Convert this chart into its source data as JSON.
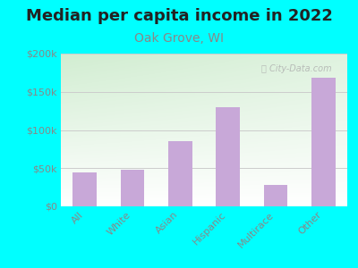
{
  "title": "Median per capita income in 2022",
  "subtitle": "Oak Grove, WI",
  "categories": [
    "All",
    "White",
    "Asian",
    "Hispanic",
    "Multirace",
    "Other"
  ],
  "values": [
    45000,
    48000,
    85000,
    130000,
    28000,
    168000
  ],
  "bar_color": "#c8a8d8",
  "background_color": "#00FFFF",
  "title_color": "#222222",
  "subtitle_color": "#888888",
  "tick_color": "#888888",
  "grid_color": "#cccccc",
  "ylim": [
    0,
    200000
  ],
  "yticks": [
    0,
    50000,
    100000,
    150000,
    200000
  ],
  "ytick_labels": [
    "$0",
    "$50k",
    "$100k",
    "$150k",
    "$200k"
  ],
  "watermark": "ⓘ City-Data.com",
  "title_fontsize": 13,
  "subtitle_fontsize": 10,
  "tick_fontsize": 8
}
